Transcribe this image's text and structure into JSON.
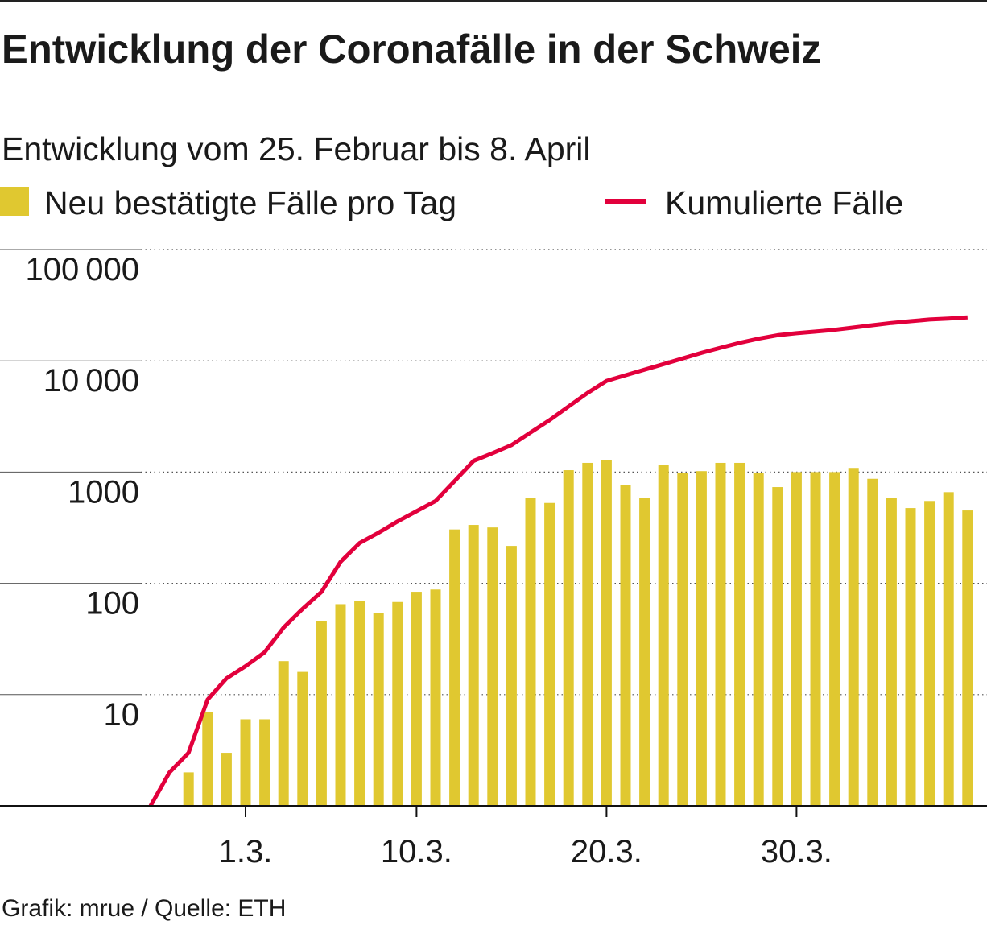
{
  "chart_data": {
    "type": "bar",
    "title": "Entwicklung der Coronafälle in der Schweiz",
    "subtitle": "Entwicklung vom 25. Februar bis 8. April",
    "source": "Grafik: mrue / Quelle: ETH",
    "categories": [
      null,
      null,
      null,
      null,
      null,
      "1.3.",
      null,
      null,
      null,
      null,
      null,
      null,
      null,
      null,
      "10.3.",
      null,
      null,
      null,
      null,
      null,
      null,
      null,
      null,
      null,
      "20.3.",
      null,
      null,
      null,
      null,
      null,
      null,
      null,
      null,
      null,
      "30.3.",
      null,
      null,
      null,
      null,
      null,
      null,
      null,
      null,
      null
    ],
    "series": [
      {
        "name": "Neu bestätigte Fälle pro Tag",
        "type": "bar",
        "color": "#e0c830",
        "values": [
          null,
          null,
          2,
          7,
          3,
          6,
          6,
          20,
          16,
          46,
          65,
          69,
          54,
          68,
          84,
          88,
          305,
          335,
          318,
          217,
          590,
          528,
          1040,
          1210,
          1290,
          771,
          590,
          1150,
          980,
          1020,
          1210,
          1210,
          980,
          733,
          1000,
          1000,
          1000,
          1090,
          870,
          590,
          475,
          550,
          660,
          452
        ]
      },
      {
        "name": "Kumulierte Fälle",
        "type": "line",
        "color": "#e2003c",
        "values": [
          1,
          2,
          3,
          9,
          14,
          18,
          24,
          40,
          59,
          84,
          156,
          230,
          285,
          360,
          445,
          550,
          830,
          1260,
          1480,
          1750,
          2270,
          2930,
          3890,
          5140,
          6600,
          7420,
          8320,
          9340,
          10500,
          11800,
          13100,
          14500,
          15800,
          17000,
          17700,
          18300,
          19000,
          19900,
          20900,
          21900,
          22700,
          23500,
          24000,
          24600
        ]
      }
    ],
    "log_scale": true,
    "grid": true,
    "ylim": [
      1,
      100000
    ],
    "yticks": [
      10,
      100,
      1000,
      {
        "value": 10000,
        "label": "10 000"
      },
      {
        "value": 100000,
        "label": "100 000"
      }
    ]
  }
}
